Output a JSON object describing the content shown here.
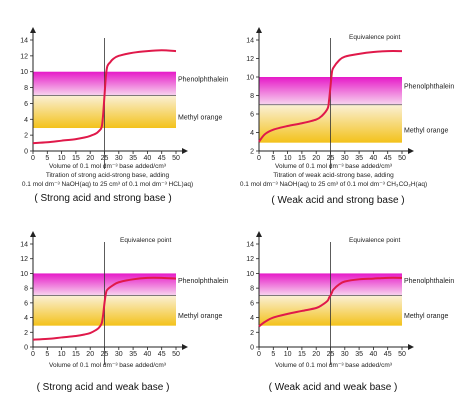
{
  "colors": {
    "curve": "#e0194a",
    "phenolphthalein_top": "#e619c8",
    "phenolphthalein_bottom": "#f7d5ee",
    "methyl_orange_top": "#faf0d6",
    "methyl_orange_bottom": "#f3c21b",
    "axis": "#222222"
  },
  "chart_data": [
    {
      "type": "line",
      "subtitle": "( Strong acid and strong base )",
      "xlabel": "Volume of 0.1 mol dm⁻³ base added/cm³",
      "caption_lines": [
        "Titration of strong acid-strong base, adding",
        "0.1 mol dm⁻³ NaOH(aq) to 25 cm³ of 0.1 mol dm⁻³ HCL)aq)"
      ],
      "equivalence_label": "",
      "xlim": [
        0,
        50
      ],
      "ylim": [
        0,
        14
      ],
      "x_ticks": [
        0,
        5,
        10,
        15,
        20,
        25,
        30,
        35,
        40,
        45,
        50
      ],
      "y_ticks": [
        0,
        2,
        4,
        6,
        8,
        10,
        12,
        14
      ],
      "equivalence_x": 25,
      "bands": [
        {
          "name": "Phenolphthalein",
          "y_range": [
            8.3,
            10
          ]
        },
        {
          "name": "Methyl orange",
          "y_range": [
            3.1,
            4.4
          ]
        }
      ],
      "series": [
        {
          "x": [
            0,
            5,
            10,
            15,
            18,
            20,
            22,
            23,
            24,
            24.5,
            25,
            25.5,
            26,
            27,
            28,
            30,
            35,
            40,
            45,
            50
          ],
          "y": [
            1.0,
            1.1,
            1.3,
            1.5,
            1.7,
            1.9,
            2.2,
            2.5,
            3.0,
            4.5,
            7.0,
            9.5,
            10.7,
            11.2,
            11.6,
            12.0,
            12.4,
            12.6,
            12.7,
            12.6
          ]
        }
      ]
    },
    {
      "type": "line",
      "subtitle": "( Weak acid and strong base )",
      "xlabel": "Volume of 0.1 mol dm⁻³ base added/cm³",
      "caption_lines": [
        "Titration of weak acid-strong base, adding",
        "0.1 mol dm⁻³ NaOH(aq) to 25 cm³ of 0.1 mol dm⁻³ CH₃CO₂H(aq)"
      ],
      "equivalence_label": "Equivalence point",
      "xlim": [
        0,
        50
      ],
      "ylim": [
        2,
        14
      ],
      "x_ticks": [
        0,
        5,
        10,
        15,
        20,
        25,
        30,
        35,
        40,
        45,
        50
      ],
      "y_ticks": [
        2,
        4,
        6,
        8,
        10,
        12,
        14
      ],
      "equivalence_x": 25,
      "bands": [
        {
          "name": "Phenolphthalein",
          "y_range": [
            8.3,
            10
          ]
        },
        {
          "name": "Methyl orange",
          "y_range": [
            3.1,
            4.4
          ]
        }
      ],
      "series": [
        {
          "x": [
            0,
            2,
            5,
            10,
            15,
            20,
            22,
            24,
            24.5,
            25,
            25.5,
            26,
            28,
            30,
            35,
            40,
            45,
            50
          ],
          "y": [
            3.0,
            3.8,
            4.3,
            4.7,
            5.0,
            5.4,
            5.8,
            6.6,
            7.5,
            9.0,
            10.5,
            11.0,
            11.8,
            12.2,
            12.5,
            12.7,
            12.8,
            12.8
          ]
        }
      ]
    },
    {
      "type": "line",
      "subtitle": "( Strong acid and weak base )",
      "xlabel": "Volume of 0.1 mol dm⁻³ base added/cm³",
      "caption_lines": [],
      "equivalence_label": "Equivalence point",
      "xlim": [
        0,
        50
      ],
      "ylim": [
        0,
        14
      ],
      "x_ticks": [
        0,
        5,
        10,
        15,
        20,
        25,
        30,
        35,
        40,
        45,
        50
      ],
      "y_ticks": [
        0,
        2,
        4,
        6,
        8,
        10,
        12,
        14
      ],
      "equivalence_x": 25,
      "bands": [
        {
          "name": "Phenolphthalein",
          "y_range": [
            8.3,
            10
          ]
        },
        {
          "name": "Methyl orange",
          "y_range": [
            3.1,
            4.4
          ]
        }
      ],
      "series": [
        {
          "x": [
            0,
            5,
            10,
            15,
            18,
            20,
            22,
            23,
            24,
            24.5,
            25,
            25.5,
            26,
            28,
            30,
            35,
            40,
            45,
            50
          ],
          "y": [
            1.0,
            1.1,
            1.3,
            1.5,
            1.7,
            1.9,
            2.3,
            2.6,
            3.2,
            4.3,
            6.0,
            7.3,
            7.8,
            8.4,
            8.8,
            9.2,
            9.4,
            9.4,
            9.3
          ]
        }
      ]
    },
    {
      "type": "line",
      "subtitle": "( Weak acid and weak base )",
      "xlabel": "Volume of 0.1 mol dm⁻³ base added/cm³",
      "caption_lines": [],
      "equivalence_label": "Equivalence point",
      "xlim": [
        0,
        50
      ],
      "ylim": [
        0,
        14
      ],
      "x_ticks": [
        0,
        5,
        10,
        15,
        20,
        25,
        30,
        35,
        40,
        45,
        50
      ],
      "y_ticks": [
        0,
        2,
        4,
        6,
        8,
        10,
        12,
        14
      ],
      "equivalence_x": 25,
      "bands": [
        {
          "name": "Phenolphthalein",
          "y_range": [
            8.3,
            10
          ]
        },
        {
          "name": "Methyl orange",
          "y_range": [
            3.1,
            4.4
          ]
        }
      ],
      "series": [
        {
          "x": [
            0,
            2,
            5,
            10,
            15,
            20,
            22,
            24,
            24.5,
            25,
            25.5,
            26,
            28,
            30,
            35,
            40,
            45,
            50
          ],
          "y": [
            2.8,
            3.4,
            4.0,
            4.5,
            4.9,
            5.3,
            5.7,
            6.3,
            6.7,
            7.0,
            7.4,
            7.8,
            8.5,
            8.9,
            9.2,
            9.3,
            9.4,
            9.4
          ]
        }
      ]
    }
  ]
}
